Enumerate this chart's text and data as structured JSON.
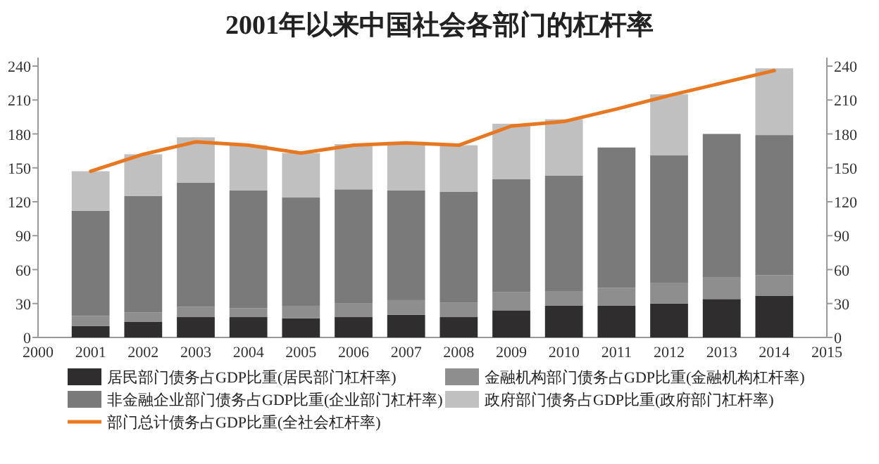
{
  "chart_data": {
    "type": "bar",
    "title": "2001年以来中国社会各部门的杠杆率",
    "x": [
      2001,
      2002,
      2003,
      2004,
      2005,
      2006,
      2007,
      2008,
      2009,
      2010,
      2011,
      2012,
      2013,
      2014
    ],
    "stacked": true,
    "xlim": [
      2000,
      2015
    ],
    "xticks": [
      2000,
      2001,
      2002,
      2003,
      2004,
      2005,
      2006,
      2007,
      2008,
      2009,
      2010,
      2011,
      2012,
      2013,
      2014,
      2015
    ],
    "ylim": [
      0,
      240
    ],
    "yticks": [
      0,
      30,
      60,
      90,
      120,
      150,
      180,
      210,
      240
    ],
    "y2lim": [
      0,
      240
    ],
    "y2ticks": [
      0,
      30,
      60,
      90,
      120,
      150,
      180,
      210,
      240
    ],
    "legend": "bottom",
    "grid": false,
    "series": [
      {
        "name": "居民部门债务占GDP比重(居民部门杠杆率)",
        "color": "#2f2d2e",
        "values": [
          10,
          14,
          18,
          18,
          17,
          18,
          20,
          18,
          24,
          28,
          28,
          30,
          34,
          37
        ]
      },
      {
        "name": "金融机构部门债务占GDP比重(金融机构杠杆率)",
        "color": "#8e8e8e",
        "values": [
          9,
          8,
          9,
          8,
          11,
          12,
          13,
          13,
          16,
          13,
          16,
          18,
          19,
          18
        ]
      },
      {
        "name": "非金融企业部门债务占GDP比重(企业部门杠杆率)",
        "color": "#7a7a7a",
        "values": [
          93,
          103,
          110,
          104,
          96,
          101,
          97,
          98,
          100,
          102,
          124,
          113,
          127,
          124
        ]
      },
      {
        "name": "政府部门债务占GDP比重(政府部门杠杆率)",
        "color": "#c0c0c0",
        "values": [
          35,
          37,
          40,
          40,
          39,
          40,
          43,
          41,
          49,
          50,
          null,
          54,
          null,
          59
        ]
      },
      {
        "name": "部门总计债务占GDP比重(全社会杠杆率)",
        "type": "line",
        "color": "#e87722",
        "values": [
          147,
          162,
          173,
          170,
          163,
          170,
          172,
          170,
          187,
          191,
          202,
          214,
          225,
          236
        ]
      }
    ]
  }
}
